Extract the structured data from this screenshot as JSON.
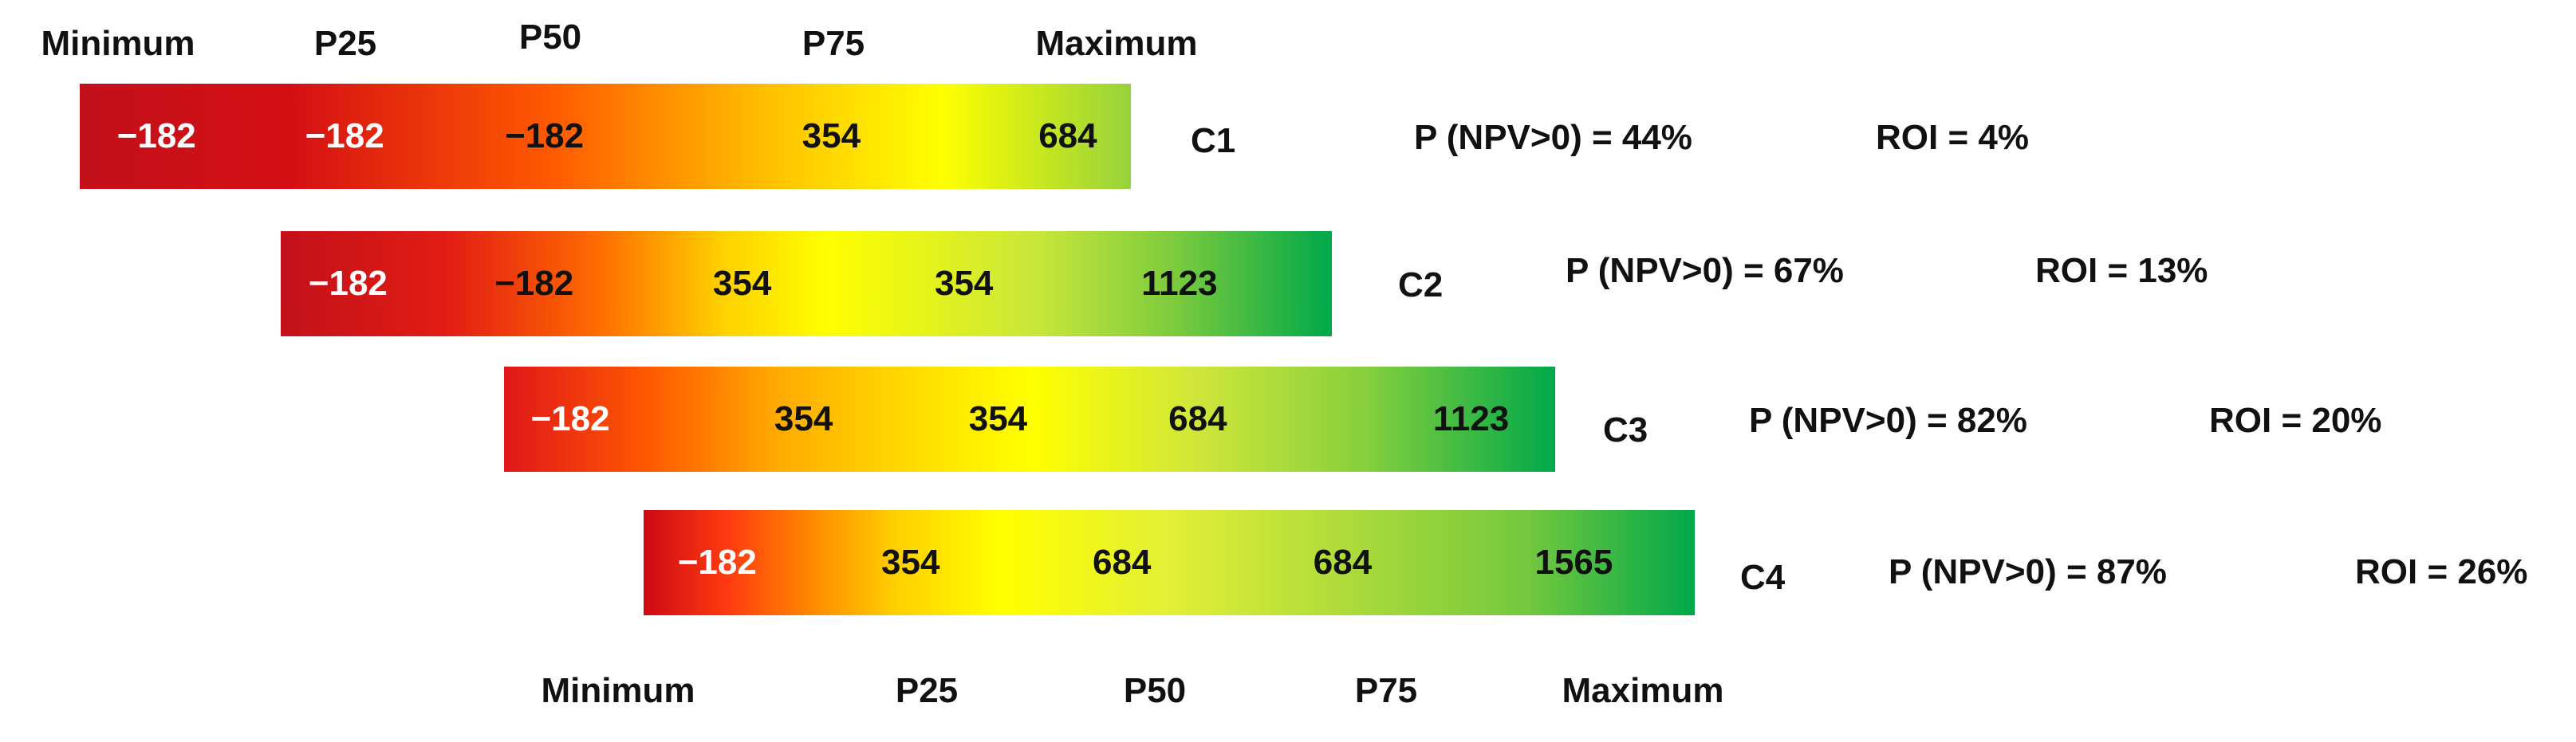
{
  "chart_data": {
    "type": "bar",
    "title": "",
    "top_headers": [
      "Minimum",
      "P25",
      "P50",
      "P75",
      "Maximum"
    ],
    "bottom_headers": [
      "Minimum",
      "P25",
      "P50",
      "P75",
      "Maximum"
    ],
    "series": [
      {
        "name": "C1",
        "values": [
          "−182",
          "−182",
          "−182",
          "354",
          "684"
        ],
        "p_npv": "P (NPV>0) = 44%",
        "roi": "ROI = 4%"
      },
      {
        "name": "C2",
        "values": [
          "−182",
          "−182",
          "354",
          "354",
          "1123"
        ],
        "p_npv": "P (NPV>0) = 67%",
        "roi": "ROI = 13%"
      },
      {
        "name": "C3",
        "values": [
          "−182",
          "354",
          "354",
          "684",
          "1123"
        ],
        "p_npv": "P (NPV>0) = 82%",
        "roi": "ROI = 20%"
      },
      {
        "name": "C4",
        "values": [
          "−182",
          "354",
          "684",
          "684",
          "1565"
        ],
        "p_npv": "P (NPV>0) = 87%",
        "roi": "ROI = 26%"
      }
    ],
    "colors": {
      "red": "#cc0a14",
      "orange": "#ff6a00",
      "yellow": "#ffff00",
      "green": "#00aa45"
    }
  }
}
